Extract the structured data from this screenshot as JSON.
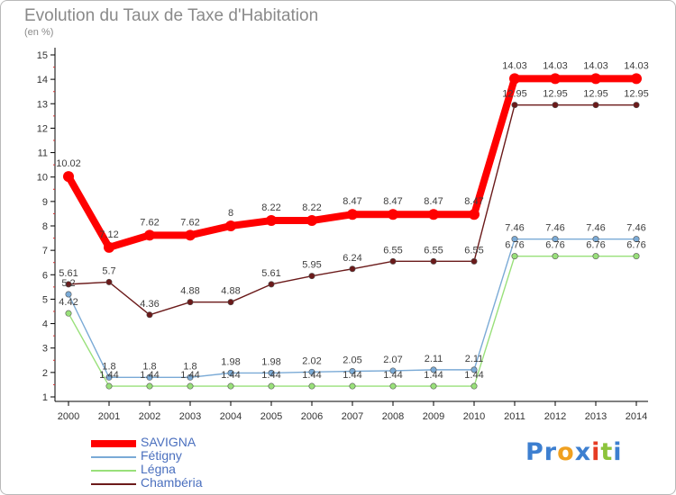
{
  "header": {
    "title": "Evolution du Taux de Taxe d'Habitation",
    "subtitle": "(en %)"
  },
  "chart_data": {
    "type": "line",
    "title": "Evolution du Taux de Taxe d'Habitation",
    "subtitle": "(en %)",
    "xlabel": "",
    "ylabel": "",
    "categories": [
      "2000",
      "2001",
      "2002",
      "2003",
      "2004",
      "2005",
      "2006",
      "2007",
      "2008",
      "2009",
      "2010",
      "2011",
      "2012",
      "2013",
      "2014"
    ],
    "ylim": [
      1,
      15
    ],
    "yticks": [
      1,
      2,
      3,
      4,
      5,
      6,
      7,
      8,
      9,
      10,
      11,
      12,
      13,
      14,
      15
    ],
    "grid": false,
    "legend_position": "bottom-left",
    "series": [
      {
        "name": "SAVIGNA",
        "color": "#ff0000",
        "values": [
          10.02,
          7.12,
          7.62,
          7.62,
          8,
          8.22,
          8.22,
          8.47,
          8.47,
          8.47,
          8.47,
          14.03,
          14.03,
          14.03,
          14.03
        ],
        "labels": [
          "10.02",
          "7.12",
          "7.62",
          "7.62",
          "8",
          "8.22",
          "8.22",
          "8.47",
          "8.47",
          "8.47",
          "8.47",
          "14.03",
          "14.03",
          "14.03",
          "14.03"
        ]
      },
      {
        "name": "Fétigny",
        "color": "#7aaad6",
        "values": [
          5.2,
          1.8,
          1.8,
          1.8,
          1.98,
          1.98,
          2.02,
          2.05,
          2.07,
          2.11,
          2.11,
          7.46,
          7.46,
          7.46,
          7.46
        ],
        "labels": [
          "5.2",
          "1.8",
          "1.8",
          "1.8",
          "1.98",
          "1.98",
          "2.02",
          "2.05",
          "2.07",
          "2.11",
          "2.11",
          "7.46",
          "7.46",
          "7.46",
          "7.46"
        ]
      },
      {
        "name": "Légna",
        "color": "#99e07a",
        "values": [
          4.42,
          1.44,
          1.44,
          1.44,
          1.44,
          1.44,
          1.44,
          1.44,
          1.44,
          1.44,
          1.44,
          6.76,
          6.76,
          6.76,
          6.76
        ],
        "labels": [
          "4.42",
          "1.44",
          "1.44",
          "1.44",
          "1.44",
          "1.44",
          "1.44",
          "1.44",
          "1.44",
          "1.44",
          "1.44",
          "6.76",
          "6.76",
          "6.76",
          "6.76"
        ]
      },
      {
        "name": "Chambéria",
        "color": "#6b1a1a",
        "values": [
          5.61,
          5.7,
          4.36,
          4.88,
          4.88,
          5.61,
          5.95,
          6.24,
          6.55,
          6.55,
          6.55,
          12.95,
          12.95,
          12.95,
          12.95
        ],
        "labels": [
          "5.61",
          "5.7",
          "4.36",
          "4.88",
          "4.88",
          "5.61",
          "5.95",
          "6.24",
          "6.55",
          "6.55",
          "6.55",
          "12.95",
          "12.95",
          "12.95",
          "12.95"
        ]
      }
    ]
  },
  "legend": {
    "items": [
      {
        "label": "SAVIGNA",
        "color": "#ff0000",
        "width": 8
      },
      {
        "label": "Fétigny",
        "color": "#7aaad6",
        "width": 2
      },
      {
        "label": "Légna",
        "color": "#99e07a",
        "width": 2
      },
      {
        "label": "Chambéria",
        "color": "#6b1a1a",
        "width": 2
      }
    ]
  },
  "logo": {
    "letters": [
      {
        "char": "P",
        "color": "#3d7fd0"
      },
      {
        "char": "r",
        "color": "#3d7fd0"
      },
      {
        "char": "o",
        "color": "#f0a020"
      },
      {
        "char": "x",
        "color": "#3d7fd0"
      },
      {
        "char": "i",
        "color": "#e63c24"
      },
      {
        "char": "t",
        "color": "#8cc43c"
      },
      {
        "char": "i",
        "color": "#3d7fd0"
      }
    ]
  }
}
